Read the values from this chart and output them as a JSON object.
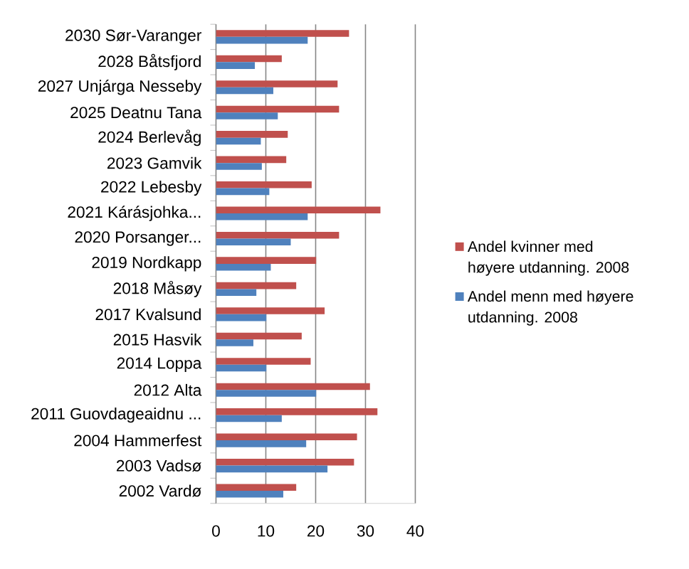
{
  "chart_data": {
    "type": "bar",
    "orientation": "horizontal",
    "categories": [
      "2030 Sør-Varanger",
      "2028 Båtsfjord",
      "2027 Unjárga Nesseby",
      "2025 Deatnu Tana",
      "2024 Berlevåg",
      "2023 Gamvik",
      "2022 Lebesby",
      "2021 Kárásjohka...",
      "2020 Porsanger...",
      "2019 Nordkapp",
      "2018 Måsøy",
      "2017 Kvalsund",
      "2015 Hasvik",
      "2014 Loppa",
      "2012 Alta",
      "2011 Guovdageaidnu ...",
      "2004 Hammerfest",
      "2003 Vadsø",
      "2002 Vardø"
    ],
    "series": [
      {
        "name": "Andel kvinner med høyere utdanning. 2008",
        "color": "#c0504d",
        "values": [
          26.7,
          13.2,
          24.4,
          24.7,
          14.4,
          14.1,
          19.2,
          33.0,
          24.7,
          20.1,
          16.1,
          21.8,
          17.2,
          19.0,
          30.9,
          32.4,
          28.3,
          27.7,
          16.1
        ]
      },
      {
        "name": "Andel menn med høyere utdanning. 2008",
        "color": "#4f81bd",
        "values": [
          18.4,
          7.8,
          11.5,
          12.4,
          9.0,
          9.2,
          10.7,
          18.4,
          15.0,
          11.0,
          8.1,
          10.1,
          7.5,
          10.1,
          20.1,
          13.2,
          18.1,
          22.4,
          13.5
        ]
      }
    ],
    "xlim": [
      0,
      40
    ],
    "xticks": [
      0,
      10,
      20,
      30,
      40
    ],
    "grid": "x",
    "legend": "right"
  }
}
